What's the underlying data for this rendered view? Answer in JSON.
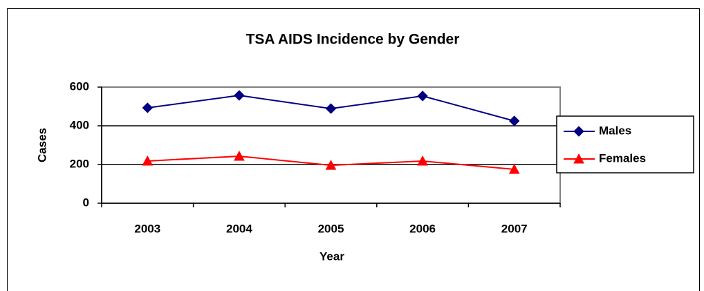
{
  "chart_data": {
    "type": "line",
    "title": "TSA AIDS Incidence by Gender",
    "xlabel": "Year",
    "ylabel": "Cases",
    "categories": [
      "2003",
      "2004",
      "2005",
      "2006",
      "2007"
    ],
    "series": [
      {
        "name": "Males",
        "color": "#000080",
        "marker": "diamond",
        "values": [
          493,
          557,
          489,
          554,
          425
        ]
      },
      {
        "name": "Females",
        "color": "#ff0000",
        "marker": "triangle",
        "values": [
          218,
          243,
          196,
          218,
          175
        ]
      }
    ],
    "ylim": [
      0,
      600
    ],
    "yticks": [
      0,
      200,
      400,
      600
    ],
    "grid": true,
    "legend": "right"
  }
}
